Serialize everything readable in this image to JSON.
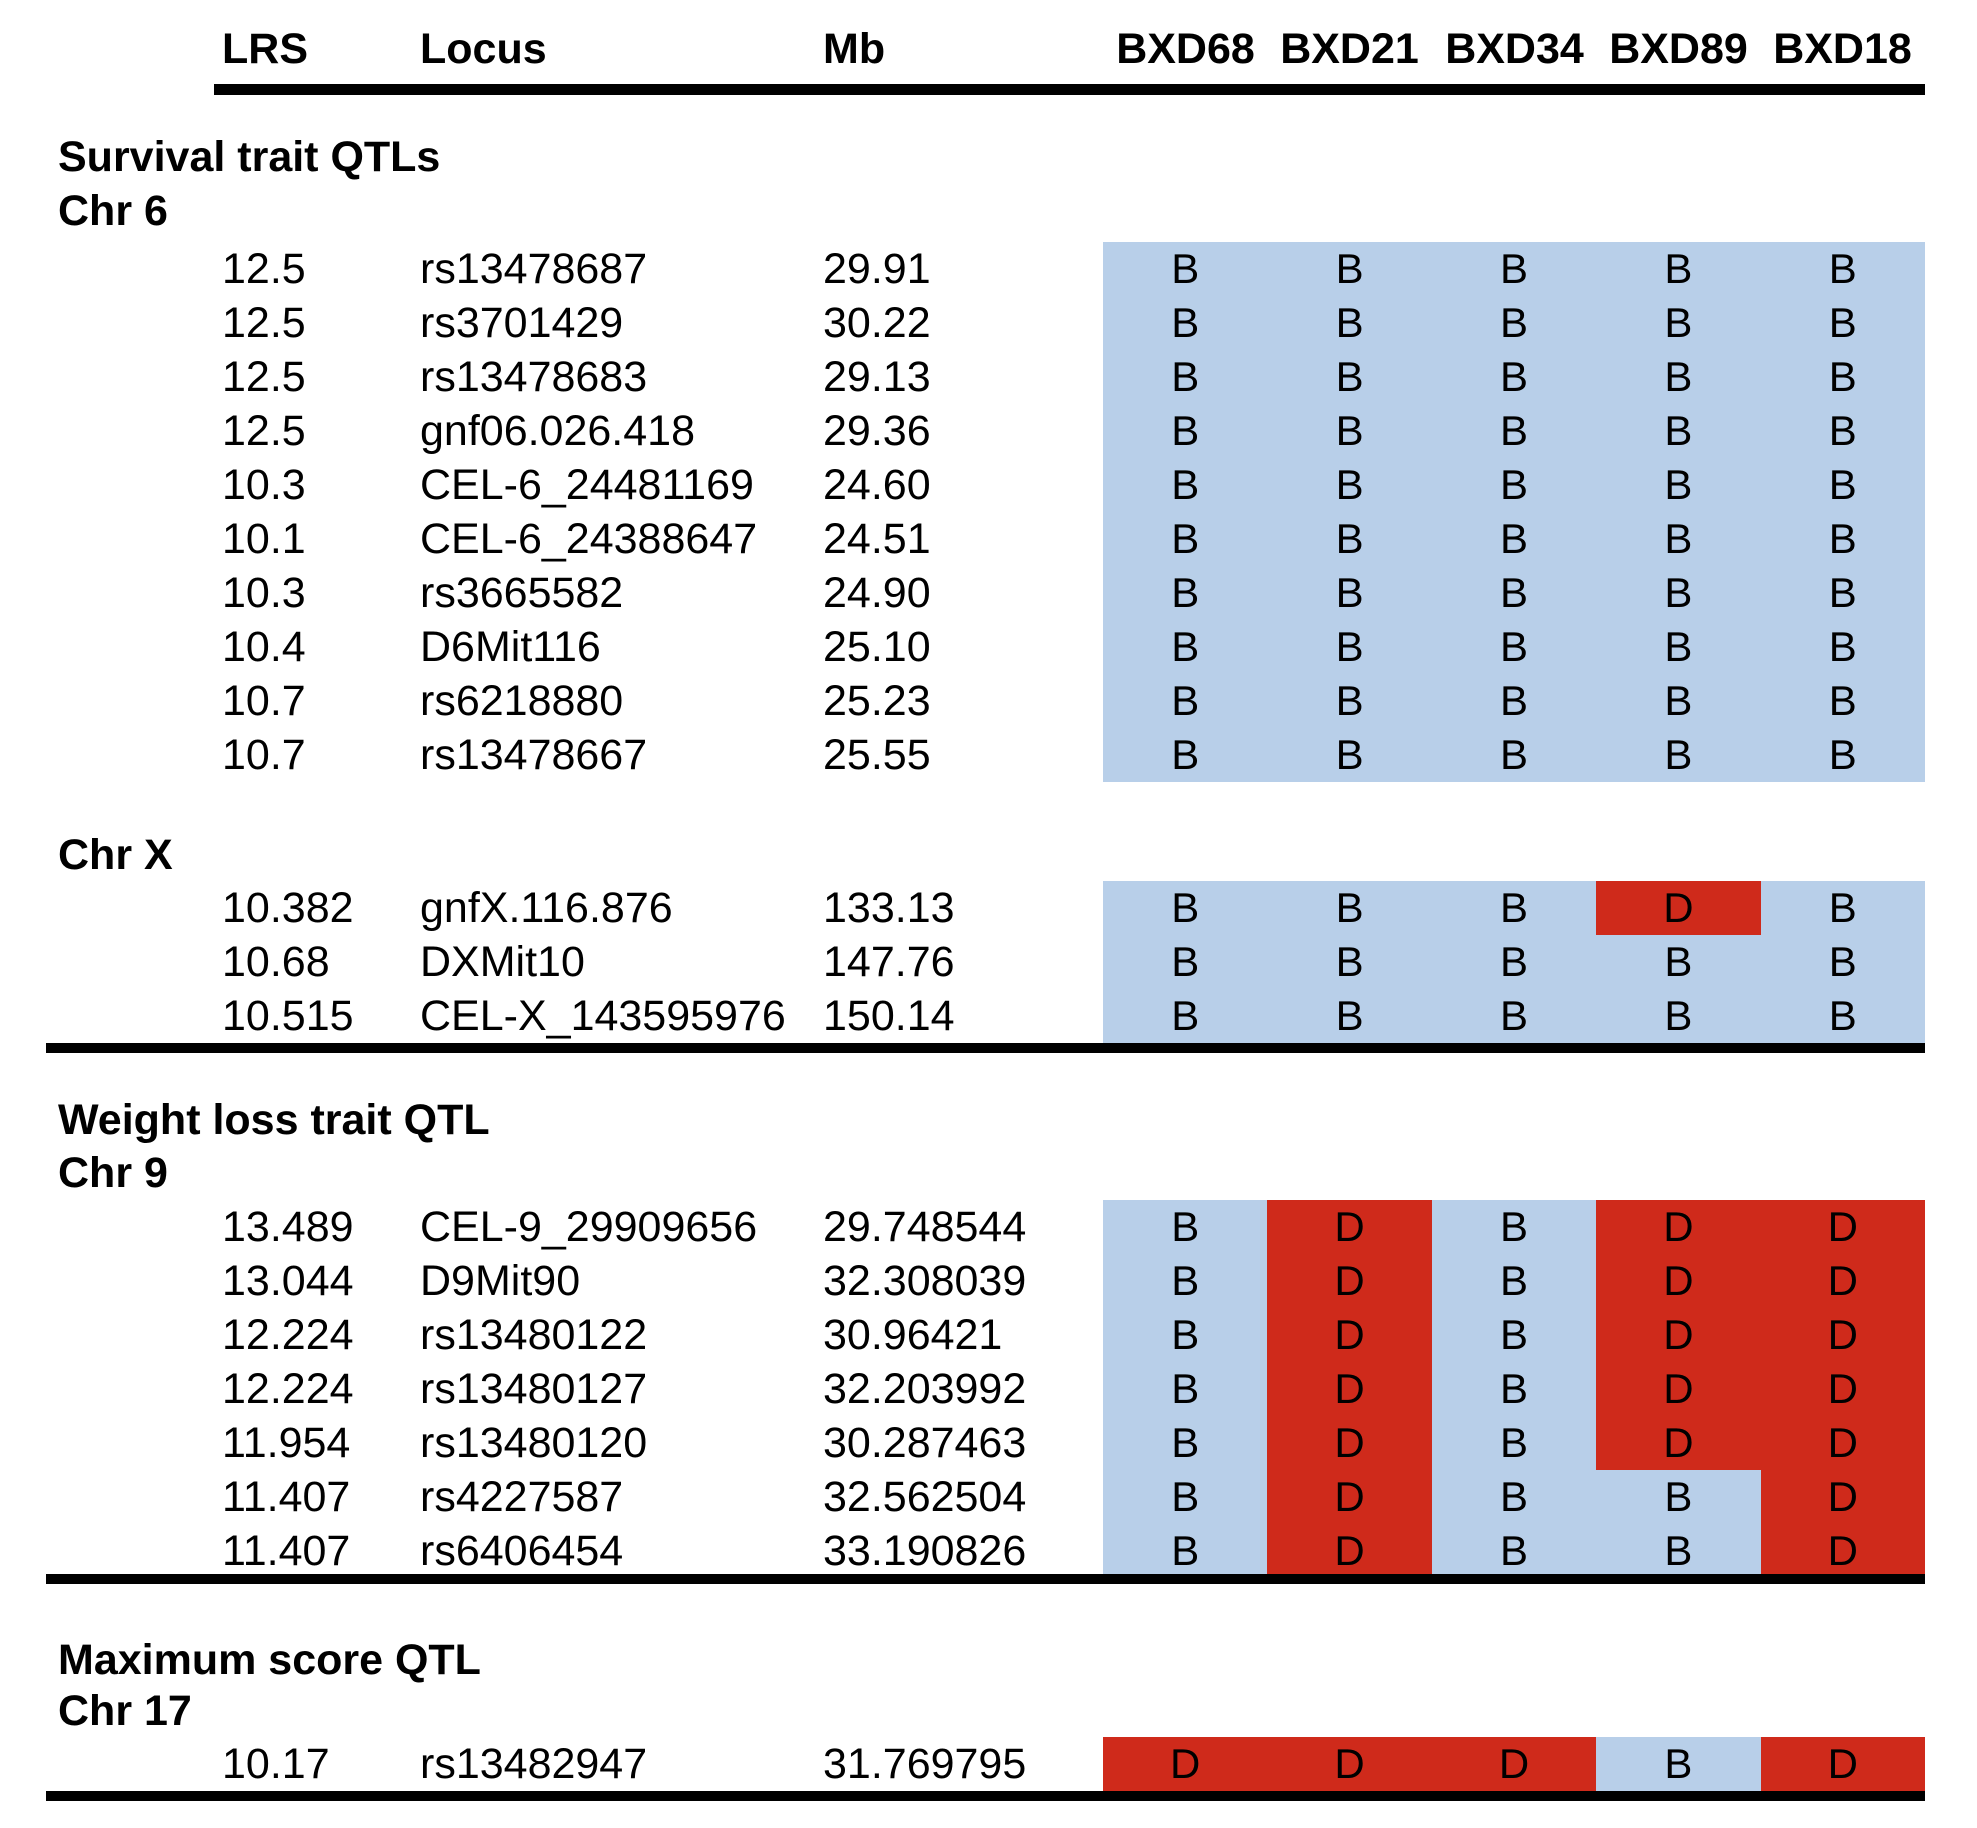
{
  "colors": {
    "b_allele_bg": "#b8cfe9",
    "d_allele_bg": "#cf2a1b",
    "text": "#000000",
    "rule": "#000000"
  },
  "table": {
    "columns": [
      "LRS",
      "Locus",
      "Mb"
    ],
    "strain_columns": [
      "BXD68",
      "BXD21",
      "BXD34",
      "BXD89",
      "BXD18"
    ]
  },
  "sections": [
    {
      "title": "Survival trait QTLs",
      "groups": [
        {
          "chr": "Chr 6",
          "rows": [
            {
              "lrs": "12.5",
              "locus": "rs13478687",
              "mb": "29.91",
              "genotypes": [
                "B",
                "B",
                "B",
                "B",
                "B"
              ]
            },
            {
              "lrs": "12.5",
              "locus": "rs3701429",
              "mb": "30.22",
              "genotypes": [
                "B",
                "B",
                "B",
                "B",
                "B"
              ]
            },
            {
              "lrs": "12.5",
              "locus": "rs13478683",
              "mb": "29.13",
              "genotypes": [
                "B",
                "B",
                "B",
                "B",
                "B"
              ]
            },
            {
              "lrs": "12.5",
              "locus": "gnf06.026.418",
              "mb": "29.36",
              "genotypes": [
                "B",
                "B",
                "B",
                "B",
                "B"
              ]
            },
            {
              "lrs": "10.3",
              "locus": "CEL-6_24481169",
              "mb": "24.60",
              "genotypes": [
                "B",
                "B",
                "B",
                "B",
                "B"
              ]
            },
            {
              "lrs": "10.1",
              "locus": "CEL-6_24388647",
              "mb": "24.51",
              "genotypes": [
                "B",
                "B",
                "B",
                "B",
                "B"
              ]
            },
            {
              "lrs": "10.3",
              "locus": "rs3665582",
              "mb": "24.90",
              "genotypes": [
                "B",
                "B",
                "B",
                "B",
                "B"
              ]
            },
            {
              "lrs": "10.4",
              "locus": "D6Mit116",
              "mb": "25.10",
              "genotypes": [
                "B",
                "B",
                "B",
                "B",
                "B"
              ]
            },
            {
              "lrs": "10.7",
              "locus": "rs6218880",
              "mb": "25.23",
              "genotypes": [
                "B",
                "B",
                "B",
                "B",
                "B"
              ]
            },
            {
              "lrs": "10.7",
              "locus": "rs13478667",
              "mb": "25.55",
              "genotypes": [
                "B",
                "B",
                "B",
                "B",
                "B"
              ]
            }
          ]
        },
        {
          "chr": "Chr X",
          "rows": [
            {
              "lrs": "10.382",
              "locus": "gnfX.116.876",
              "mb": "133.13",
              "genotypes": [
                "B",
                "B",
                "B",
                "D",
                "B"
              ]
            },
            {
              "lrs": "10.68",
              "locus": "DXMit10",
              "mb": "147.76",
              "genotypes": [
                "B",
                "B",
                "B",
                "B",
                "B"
              ]
            },
            {
              "lrs": "10.515",
              "locus": "CEL-X_143595976",
              "mb": "150.14",
              "genotypes": [
                "B",
                "B",
                "B",
                "B",
                "B"
              ]
            }
          ]
        }
      ]
    },
    {
      "title": "Weight loss trait QTL",
      "groups": [
        {
          "chr": "Chr 9",
          "rows": [
            {
              "lrs": "13.489",
              "locus": "CEL-9_29909656",
              "mb": "29.748544",
              "genotypes": [
                "B",
                "D",
                "B",
                "D",
                "D"
              ]
            },
            {
              "lrs": "13.044",
              "locus": "D9Mit90",
              "mb": "32.308039",
              "genotypes": [
                "B",
                "D",
                "B",
                "D",
                "D"
              ]
            },
            {
              "lrs": "12.224",
              "locus": "rs13480122",
              "mb": "30.96421",
              "genotypes": [
                "B",
                "D",
                "B",
                "D",
                "D"
              ]
            },
            {
              "lrs": "12.224",
              "locus": "rs13480127",
              "mb": "32.203992",
              "genotypes": [
                "B",
                "D",
                "B",
                "D",
                "D"
              ]
            },
            {
              "lrs": "11.954",
              "locus": "rs13480120",
              "mb": "30.287463",
              "genotypes": [
                "B",
                "D",
                "B",
                "D",
                "D"
              ]
            },
            {
              "lrs": "11.407",
              "locus": "rs4227587",
              "mb": "32.562504",
              "genotypes": [
                "B",
                "D",
                "B",
                "B",
                "D"
              ]
            },
            {
              "lrs": "11.407",
              "locus": "rs6406454",
              "mb": "33.190826",
              "genotypes": [
                "B",
                "D",
                "B",
                "B",
                "D"
              ]
            }
          ]
        }
      ]
    },
    {
      "title": "Maximum score QTL",
      "groups": [
        {
          "chr": "Chr 17",
          "rows": [
            {
              "lrs": "10.17",
              "locus": "rs13482947",
              "mb": "31.769795",
              "genotypes": [
                "D",
                "D",
                "D",
                "B",
                "D"
              ]
            }
          ]
        }
      ]
    }
  ]
}
